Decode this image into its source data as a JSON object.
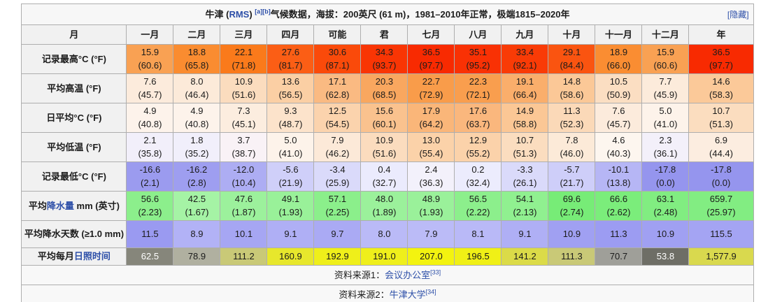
{
  "colors": {
    "link": "#2d4fa8"
  },
  "title": {
    "prefix": "牛津 (",
    "station_link": "RMS",
    "after_link": ") ",
    "refs": "[a][b]",
    "text": "气候数据，海拔：200英尺 (61 m)，1981–2010年正常，极端1815–2020年",
    "hide_label": "[隐藏]"
  },
  "table": {
    "columns": [
      "月",
      "一月",
      "二月",
      "三月",
      "四月",
      "可能",
      "君",
      "七月",
      "八月",
      "九月",
      "十月",
      "十一月",
      "十二月",
      "年"
    ],
    "rows": [
      {
        "id": "record-high",
        "label": [
          {
            "t": "记录最高°C (°F)"
          }
        ],
        "cells": [
          {
            "v": "15.9",
            "s": "(60.6)",
            "bg": "#F9A153"
          },
          {
            "v": "18.8",
            "s": "(65.8)",
            "bg": "#FA8C30"
          },
          {
            "v": "22.1",
            "s": "(71.8)",
            "bg": "#FA7A1B"
          },
          {
            "v": "27.6",
            "s": "(81.7)",
            "bg": "#FB5E15"
          },
          {
            "v": "30.6",
            "s": "(87.1)",
            "bg": "#FA4A0A"
          },
          {
            "v": "34.3",
            "s": "(93.7)",
            "bg": "#F93504"
          },
          {
            "v": "36.5",
            "s": "(97.7)",
            "bg": "#F82A01"
          },
          {
            "v": "35.1",
            "s": "(95.2)",
            "bg": "#F93104"
          },
          {
            "v": "33.4",
            "s": "(92.1)",
            "bg": "#F93B06"
          },
          {
            "v": "29.1",
            "s": "(84.4)",
            "bg": "#FA5410"
          },
          {
            "v": "18.9",
            "s": "(66.0)",
            "bg": "#FA8D32"
          },
          {
            "v": "15.9",
            "s": "(60.6)",
            "bg": "#F9A153"
          },
          {
            "v": "36.5",
            "s": "(97.7)",
            "bg": "#F82A01"
          }
        ]
      },
      {
        "id": "avg-high",
        "label": [
          {
            "t": "平均高温 (°F)"
          }
        ],
        "cells": [
          {
            "v": "7.6",
            "s": "(45.7)",
            "bg": "#FCEBDC"
          },
          {
            "v": "8.0",
            "s": "(46.4)",
            "bg": "#FCEAD9"
          },
          {
            "v": "10.9",
            "s": "(51.6)",
            "bg": "#FBDCBE"
          },
          {
            "v": "13.6",
            "s": "(56.5)",
            "bg": "#FBCFA4"
          },
          {
            "v": "17.1",
            "s": "(62.8)",
            "bg": "#FABA82"
          },
          {
            "v": "20.3",
            "s": "(68.5)",
            "bg": "#F9A75F"
          },
          {
            "v": "22.7",
            "s": "(72.9)",
            "bg": "#F99C4A"
          },
          {
            "v": "22.3",
            "s": "(72.1)",
            "bg": "#F99E4E"
          },
          {
            "v": "19.1",
            "s": "(66.4)",
            "bg": "#FAAE6B"
          },
          {
            "v": "14.8",
            "s": "(58.6)",
            "bg": "#FBC897"
          },
          {
            "v": "10.5",
            "s": "(50.9)",
            "bg": "#FBDEC2"
          },
          {
            "v": "7.7",
            "s": "(45.9)",
            "bg": "#FCEBDB"
          },
          {
            "v": "14.6",
            "s": "(58.3)",
            "bg": "#FBC999"
          }
        ]
      },
      {
        "id": "daily-mean",
        "label": [
          {
            "t": "日平均°C (°F)"
          }
        ],
        "cells": [
          {
            "v": "4.9",
            "s": "(40.8)",
            "bg": "#FDF3EB"
          },
          {
            "v": "4.9",
            "s": "(40.8)",
            "bg": "#FDF3EB"
          },
          {
            "v": "7.3",
            "s": "(45.1)",
            "bg": "#FCEDDF"
          },
          {
            "v": "9.3",
            "s": "(48.7)",
            "bg": "#FCE3CB"
          },
          {
            "v": "12.5",
            "s": "(54.5)",
            "bg": "#FBD3AD"
          },
          {
            "v": "15.6",
            "s": "(60.1)",
            "bg": "#FAC28E"
          },
          {
            "v": "17.9",
            "s": "(64.2)",
            "bg": "#FAB679"
          },
          {
            "v": "17.6",
            "s": "(63.7)",
            "bg": "#FAB77D"
          },
          {
            "v": "14.9",
            "s": "(58.8)",
            "bg": "#FBC795"
          },
          {
            "v": "11.3",
            "s": "(52.3)",
            "bg": "#FBD9B8"
          },
          {
            "v": "7.6",
            "s": "(45.7)",
            "bg": "#FCEBDC"
          },
          {
            "v": "5.0",
            "s": "(41.0)",
            "bg": "#FDF3EA"
          },
          {
            "v": "10.7",
            "s": "(51.3)",
            "bg": "#FBDDBF"
          }
        ]
      },
      {
        "id": "avg-low",
        "label": [
          {
            "t": "平均低温 (°F)"
          }
        ],
        "cells": [
          {
            "v": "2.1",
            "s": "(35.8)",
            "bg": "#F2EFFA"
          },
          {
            "v": "1.8",
            "s": "(35.2)",
            "bg": "#F1EFFB"
          },
          {
            "v": "3.7",
            "s": "(38.7)",
            "bg": "#F9F2F6"
          },
          {
            "v": "5.0",
            "s": "(41.0)",
            "bg": "#FDF3EA"
          },
          {
            "v": "7.9",
            "s": "(46.2)",
            "bg": "#FCE9D8"
          },
          {
            "v": "10.9",
            "s": "(51.6)",
            "bg": "#FBDCBE"
          },
          {
            "v": "13.0",
            "s": "(55.4)",
            "bg": "#FBD2A9"
          },
          {
            "v": "12.9",
            "s": "(55.2)",
            "bg": "#FBD2AA"
          },
          {
            "v": "10.7",
            "s": "(51.3)",
            "bg": "#FBDDBF"
          },
          {
            "v": "7.8",
            "s": "(46.0)",
            "bg": "#FCEAD8"
          },
          {
            "v": "4.6",
            "s": "(40.3)",
            "bg": "#FDF6EF"
          },
          {
            "v": "2.3",
            "s": "(36.1)",
            "bg": "#F3F0FA"
          },
          {
            "v": "6.9",
            "s": "(44.4)",
            "bg": "#FCEDE0"
          }
        ]
      },
      {
        "id": "record-low",
        "label": [
          {
            "t": "记录最低°C (°F)"
          }
        ],
        "cells": [
          {
            "v": "-16.6",
            "s": "(2.1)",
            "bg": "#9B9BEF"
          },
          {
            "v": "-16.2",
            "s": "(2.8)",
            "bg": "#9E9EF0"
          },
          {
            "v": "-12.0",
            "s": "(10.4)",
            "bg": "#ADADF3"
          },
          {
            "v": "-5.6",
            "s": "(21.9)",
            "bg": "#CFCFF9"
          },
          {
            "v": "-3.4",
            "s": "(25.9)",
            "bg": "#DADAFA"
          },
          {
            "v": "0.4",
            "s": "(32.7)",
            "bg": "#EBEBFD"
          },
          {
            "v": "2.4",
            "s": "(36.3)",
            "bg": "#F3F1FB"
          },
          {
            "v": "0.2",
            "s": "(32.4)",
            "bg": "#ECECFD"
          },
          {
            "v": "-3.3",
            "s": "(26.1)",
            "bg": "#DADAFA"
          },
          {
            "v": "-5.7",
            "s": "(21.7)",
            "bg": "#CECEF9"
          },
          {
            "v": "-10.1",
            "s": "(13.8)",
            "bg": "#B6B6F5"
          },
          {
            "v": "-17.8",
            "s": "(0.0)",
            "bg": "#9595EE"
          },
          {
            "v": "-17.8",
            "s": "(0.0)",
            "bg": "#9595EE"
          }
        ]
      },
      {
        "id": "precip",
        "label": [
          {
            "t": "平均"
          },
          {
            "t": "降水量",
            "link": true,
            "name": "precipitation-link"
          },
          {
            "t": " mm (英寸)"
          }
        ],
        "cells": [
          {
            "v": "56.6",
            "s": "(2.23)",
            "bg": "#8CEF8C"
          },
          {
            "v": "42.5",
            "s": "(1.67)",
            "bg": "#A5F3A5"
          },
          {
            "v": "47.6",
            "s": "(1.87)",
            "bg": "#9CF19C"
          },
          {
            "v": "49.1",
            "s": "(1.93)",
            "bg": "#99F199"
          },
          {
            "v": "57.1",
            "s": "(2.25)",
            "bg": "#8BEF8B"
          },
          {
            "v": "48.0",
            "s": "(1.89)",
            "bg": "#9BF19B"
          },
          {
            "v": "48.9",
            "s": "(1.93)",
            "bg": "#9AF19A"
          },
          {
            "v": "56.5",
            "s": "(2.22)",
            "bg": "#8CEF8C"
          },
          {
            "v": "54.1",
            "s": "(2.13)",
            "bg": "#90F090"
          },
          {
            "v": "69.6",
            "s": "(2.74)",
            "bg": "#77EC77"
          },
          {
            "v": "66.6",
            "s": "(2.62)",
            "bg": "#7BED7B"
          },
          {
            "v": "63.1",
            "s": "(2.48)",
            "bg": "#81ED81"
          },
          {
            "v": "659.7",
            "s": "(25.97)",
            "bg": "#82ED82"
          }
        ]
      },
      {
        "id": "precip-days",
        "label": [
          {
            "t": "平均降水天数 (≥1.0 mm)"
          }
        ],
        "cells": [
          {
            "v": "11.5",
            "bg": "#9A9AF1"
          },
          {
            "v": "8.9",
            "bg": "#B2B2F6"
          },
          {
            "v": "10.1",
            "bg": "#A6A6F3"
          },
          {
            "v": "9.1",
            "bg": "#AFAFF5"
          },
          {
            "v": "9.7",
            "bg": "#AAAAF4"
          },
          {
            "v": "8.0",
            "bg": "#BABAF7"
          },
          {
            "v": "7.9",
            "bg": "#BBBBF7"
          },
          {
            "v": "8.1",
            "bg": "#B9B9F7"
          },
          {
            "v": "9.1",
            "bg": "#AFAFF5"
          },
          {
            "v": "10.9",
            "bg": "#A0A0F2"
          },
          {
            "v": "11.3",
            "bg": "#9C9CF2"
          },
          {
            "v": "10.9",
            "bg": "#A0A0F2"
          },
          {
            "v": "115.5",
            "bg": "#A4A4F3"
          }
        ]
      },
      {
        "id": "sunshine",
        "label": [
          {
            "t": "平均每月"
          },
          {
            "t": "日照时间",
            "link": true,
            "name": "sunshine-link"
          }
        ],
        "cells": [
          {
            "v": "62.5",
            "bg": "#86867B",
            "fg": "#FFFFFF"
          },
          {
            "v": "78.9",
            "bg": "#B0B0A0"
          },
          {
            "v": "111.2",
            "bg": "#C9C977"
          },
          {
            "v": "160.9",
            "bg": "#E7E72C"
          },
          {
            "v": "192.9",
            "bg": "#EFEF1A"
          },
          {
            "v": "191.0",
            "bg": "#EFEF1B"
          },
          {
            "v": "207.0",
            "bg": "#F3F30F"
          },
          {
            "v": "196.5",
            "bg": "#F0F016"
          },
          {
            "v": "141.2",
            "bg": "#DBDB48"
          },
          {
            "v": "111.3",
            "bg": "#C9C977"
          },
          {
            "v": "70.7",
            "bg": "#9F9F99"
          },
          {
            "v": "53.8",
            "bg": "#6E6E66",
            "fg": "#FFFFFF"
          },
          {
            "v": "1,577.9",
            "bg": "#D9D94E"
          }
        ]
      }
    ]
  },
  "sources": [
    {
      "pre": "资料来源1：",
      "link": "会议办公室",
      "ref": "[33]"
    },
    {
      "pre": "资料来源2：",
      "link": "牛津大学",
      "ref": "[34]"
    }
  ]
}
